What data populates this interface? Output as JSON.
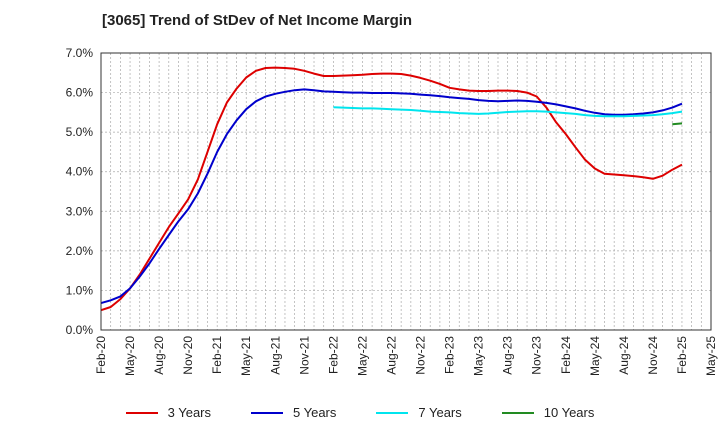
{
  "chart_data": {
    "type": "line",
    "title": "[3065]  Trend of StDev of Net Income Margin",
    "xlabel": "",
    "ylabel": "",
    "ylim": [
      0,
      7.0
    ],
    "y_tick_values": [
      0,
      1,
      2,
      3,
      4,
      5,
      6,
      7
    ],
    "y_tick_labels": [
      "0.0%",
      "1.0%",
      "2.0%",
      "3.0%",
      "4.0%",
      "5.0%",
      "6.0%",
      "7.0%"
    ],
    "x_tick_labels": [
      "Feb-20",
      "May-20",
      "Aug-20",
      "Nov-20",
      "Feb-21",
      "May-21",
      "Aug-21",
      "Nov-21",
      "Feb-22",
      "May-22",
      "Aug-22",
      "Nov-22",
      "Feb-23",
      "May-23",
      "Aug-23",
      "Nov-23",
      "Feb-24",
      "May-24",
      "Aug-24",
      "Nov-24",
      "Feb-25",
      "May-25"
    ],
    "grid": true,
    "legend_position": "bottom",
    "series": [
      {
        "name": "3 Years",
        "color": "#dd0000",
        "points": [
          [
            "Feb-20",
            0.5
          ],
          [
            "Mar-20",
            0.58
          ],
          [
            "Apr-20",
            0.78
          ],
          [
            "May-20",
            1.05
          ],
          [
            "Jun-20",
            1.4
          ],
          [
            "Jul-20",
            1.8
          ],
          [
            "Aug-20",
            2.2
          ],
          [
            "Sep-20",
            2.6
          ],
          [
            "Oct-20",
            2.95
          ],
          [
            "Nov-20",
            3.3
          ],
          [
            "Dec-20",
            3.8
          ],
          [
            "Jan-21",
            4.5
          ],
          [
            "Feb-21",
            5.2
          ],
          [
            "Mar-21",
            5.75
          ],
          [
            "Apr-21",
            6.1
          ],
          [
            "May-21",
            6.38
          ],
          [
            "Jun-21",
            6.55
          ],
          [
            "Jul-21",
            6.62
          ],
          [
            "Aug-21",
            6.63
          ],
          [
            "Sep-21",
            6.62
          ],
          [
            "Oct-21",
            6.6
          ],
          [
            "Nov-21",
            6.55
          ],
          [
            "Dec-21",
            6.48
          ],
          [
            "Jan-22",
            6.42
          ],
          [
            "Feb-22",
            6.42
          ],
          [
            "Mar-22",
            6.43
          ],
          [
            "Apr-22",
            6.44
          ],
          [
            "May-22",
            6.45
          ],
          [
            "Jun-22",
            6.47
          ],
          [
            "Jul-22",
            6.48
          ],
          [
            "Aug-22",
            6.48
          ],
          [
            "Sep-22",
            6.47
          ],
          [
            "Oct-22",
            6.43
          ],
          [
            "Nov-22",
            6.37
          ],
          [
            "Dec-22",
            6.3
          ],
          [
            "Jan-23",
            6.22
          ],
          [
            "Feb-23",
            6.12
          ],
          [
            "Mar-23",
            6.08
          ],
          [
            "Apr-23",
            6.05
          ],
          [
            "May-23",
            6.04
          ],
          [
            "Jun-23",
            6.04
          ],
          [
            "Jul-23",
            6.05
          ],
          [
            "Aug-23",
            6.05
          ],
          [
            "Sep-23",
            6.04
          ],
          [
            "Oct-23",
            6.0
          ],
          [
            "Nov-23",
            5.9
          ],
          [
            "Dec-23",
            5.62
          ],
          [
            "Jan-24",
            5.25
          ],
          [
            "Feb-24",
            4.95
          ],
          [
            "Mar-24",
            4.62
          ],
          [
            "Apr-24",
            4.3
          ],
          [
            "May-24",
            4.08
          ],
          [
            "Jun-24",
            3.95
          ],
          [
            "Jul-24",
            3.93
          ],
          [
            "Aug-24",
            3.91
          ],
          [
            "Sep-24",
            3.89
          ],
          [
            "Oct-24",
            3.86
          ],
          [
            "Nov-24",
            3.82
          ],
          [
            "Dec-24",
            3.9
          ],
          [
            "Jan-25",
            4.05
          ],
          [
            "Feb-25",
            4.18
          ]
        ]
      },
      {
        "name": "5 Years",
        "color": "#0000cc",
        "points": [
          [
            "Feb-20",
            0.68
          ],
          [
            "Mar-20",
            0.75
          ],
          [
            "Apr-20",
            0.85
          ],
          [
            "May-20",
            1.05
          ],
          [
            "Jun-20",
            1.35
          ],
          [
            "Jul-20",
            1.68
          ],
          [
            "Aug-20",
            2.05
          ],
          [
            "Sep-20",
            2.4
          ],
          [
            "Oct-20",
            2.75
          ],
          [
            "Nov-20",
            3.05
          ],
          [
            "Dec-20",
            3.45
          ],
          [
            "Jan-21",
            3.95
          ],
          [
            "Feb-21",
            4.5
          ],
          [
            "Mar-21",
            4.95
          ],
          [
            "Apr-21",
            5.3
          ],
          [
            "May-21",
            5.58
          ],
          [
            "Jun-21",
            5.78
          ],
          [
            "Jul-21",
            5.9
          ],
          [
            "Aug-21",
            5.97
          ],
          [
            "Sep-21",
            6.02
          ],
          [
            "Oct-21",
            6.06
          ],
          [
            "Nov-21",
            6.08
          ],
          [
            "Dec-21",
            6.06
          ],
          [
            "Jan-22",
            6.03
          ],
          [
            "Feb-22",
            6.02
          ],
          [
            "Mar-22",
            6.01
          ],
          [
            "Apr-22",
            6.0
          ],
          [
            "May-22",
            6.0
          ],
          [
            "Jun-22",
            5.99
          ],
          [
            "Jul-22",
            5.99
          ],
          [
            "Aug-22",
            5.99
          ],
          [
            "Sep-22",
            5.98
          ],
          [
            "Oct-22",
            5.97
          ],
          [
            "Nov-22",
            5.95
          ],
          [
            "Dec-22",
            5.93
          ],
          [
            "Jan-23",
            5.91
          ],
          [
            "Feb-23",
            5.88
          ],
          [
            "Mar-23",
            5.86
          ],
          [
            "Apr-23",
            5.84
          ],
          [
            "May-23",
            5.81
          ],
          [
            "Jun-23",
            5.79
          ],
          [
            "Jul-23",
            5.78
          ],
          [
            "Aug-23",
            5.79
          ],
          [
            "Sep-23",
            5.8
          ],
          [
            "Oct-23",
            5.79
          ],
          [
            "Nov-23",
            5.77
          ],
          [
            "Dec-23",
            5.74
          ],
          [
            "Jan-24",
            5.7
          ],
          [
            "Feb-24",
            5.65
          ],
          [
            "Mar-24",
            5.6
          ],
          [
            "Apr-24",
            5.54
          ],
          [
            "May-24",
            5.49
          ],
          [
            "Jun-24",
            5.45
          ],
          [
            "Jul-24",
            5.44
          ],
          [
            "Aug-24",
            5.44
          ],
          [
            "Sep-24",
            5.45
          ],
          [
            "Oct-24",
            5.47
          ],
          [
            "Nov-24",
            5.5
          ],
          [
            "Dec-24",
            5.55
          ],
          [
            "Jan-25",
            5.62
          ],
          [
            "Feb-25",
            5.72
          ]
        ]
      },
      {
        "name": "7 Years",
        "color": "#00e5ee",
        "points": [
          [
            "Feb-22",
            5.63
          ],
          [
            "Mar-22",
            5.62
          ],
          [
            "Apr-22",
            5.61
          ],
          [
            "May-22",
            5.6
          ],
          [
            "Jun-22",
            5.6
          ],
          [
            "Jul-22",
            5.59
          ],
          [
            "Aug-22",
            5.58
          ],
          [
            "Sep-22",
            5.57
          ],
          [
            "Oct-22",
            5.56
          ],
          [
            "Nov-22",
            5.54
          ],
          [
            "Dec-22",
            5.52
          ],
          [
            "Jan-23",
            5.51
          ],
          [
            "Feb-23",
            5.5
          ],
          [
            "Mar-23",
            5.48
          ],
          [
            "Apr-23",
            5.47
          ],
          [
            "May-23",
            5.46
          ],
          [
            "Jun-23",
            5.47
          ],
          [
            "Jul-23",
            5.49
          ],
          [
            "Aug-23",
            5.51
          ],
          [
            "Sep-23",
            5.52
          ],
          [
            "Oct-23",
            5.53
          ],
          [
            "Nov-23",
            5.53
          ],
          [
            "Dec-23",
            5.52
          ],
          [
            "Jan-24",
            5.5
          ],
          [
            "Feb-24",
            5.48
          ],
          [
            "Mar-24",
            5.46
          ],
          [
            "Apr-24",
            5.43
          ],
          [
            "May-24",
            5.41
          ],
          [
            "Jun-24",
            5.4
          ],
          [
            "Jul-24",
            5.4
          ],
          [
            "Aug-24",
            5.4
          ],
          [
            "Sep-24",
            5.41
          ],
          [
            "Oct-24",
            5.42
          ],
          [
            "Nov-24",
            5.43
          ],
          [
            "Dec-24",
            5.45
          ],
          [
            "Jan-25",
            5.48
          ],
          [
            "Feb-25",
            5.52
          ]
        ]
      },
      {
        "name": "10 Years",
        "color": "#228b22",
        "points": [
          [
            "Jan-25",
            5.2
          ],
          [
            "Feb-25",
            5.22
          ]
        ]
      }
    ]
  }
}
